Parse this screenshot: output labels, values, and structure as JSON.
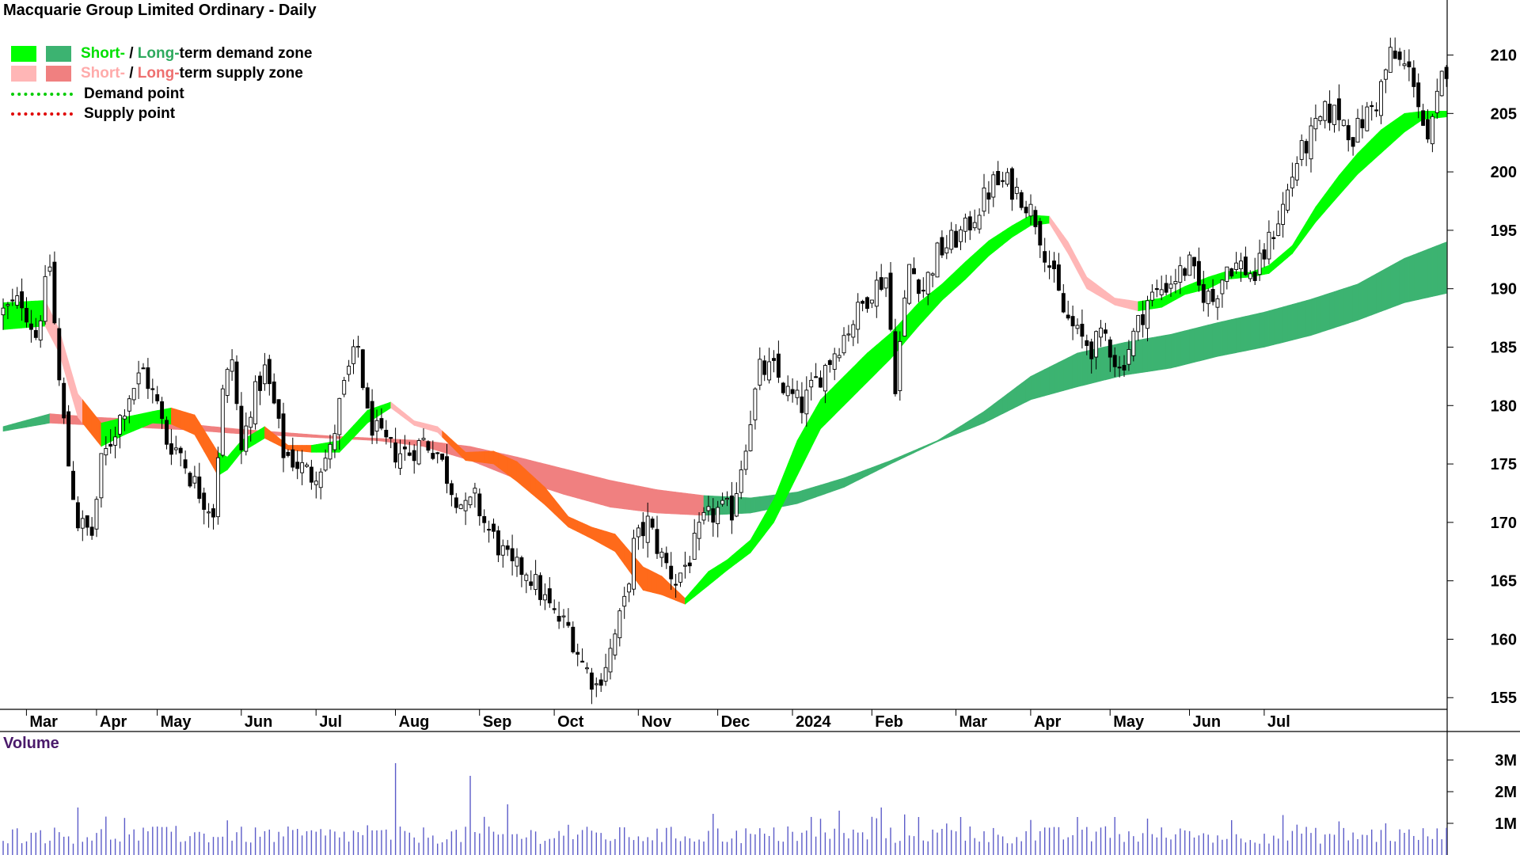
{
  "title": "Macquarie Group Limited Ordinary - Daily",
  "legend": {
    "demand": {
      "short": "Short-",
      "sep": " / ",
      "long": "Long-",
      "rest": "term demand zone"
    },
    "supply": {
      "short": "Short-",
      "sep": " / ",
      "long": "Long-",
      "rest": "term supply zone"
    },
    "demand_point": "Demand point",
    "supply_point": "Supply point"
  },
  "volume_label": "Volume",
  "colors": {
    "short_demand": "#00ff00",
    "long_demand": "#3cb371",
    "short_supply": "#ffb6b6",
    "long_supply": "#f08080",
    "supply_overlap": "#ff6a1a",
    "demand_point": "#00cc00",
    "supply_point": "#e00000",
    "volume_bar": "#5b5bc8",
    "candle": "#000000"
  },
  "chart_data": {
    "type": "candlestick",
    "title": "Macquarie Group Limited Ordinary - Daily",
    "x_months": [
      "Mar",
      "Apr",
      "May",
      "Jun",
      "Jul",
      "Aug",
      "Sep",
      "Oct",
      "Nov",
      "Dec",
      "2024",
      "Feb",
      "Mar",
      "Apr",
      "May",
      "Jun",
      "Jul"
    ],
    "price_axis": {
      "ticks": [
        155,
        160,
        165,
        170,
        175,
        180,
        185,
        190,
        195,
        200,
        205,
        210
      ],
      "range": [
        154,
        212
      ]
    },
    "volume_axis": {
      "ticks": [
        "1M",
        "2M",
        "3M"
      ],
      "values": [
        1000000,
        2000000,
        3000000
      ]
    },
    "close_path": [
      [
        0,
        188
      ],
      [
        4,
        189
      ],
      [
        7,
        186
      ],
      [
        10,
        192
      ],
      [
        12,
        182
      ],
      [
        14,
        175
      ],
      [
        16,
        170
      ],
      [
        19,
        169
      ],
      [
        21,
        175
      ],
      [
        24,
        178
      ],
      [
        27,
        181
      ],
      [
        30,
        183
      ],
      [
        33,
        180
      ],
      [
        35,
        177
      ],
      [
        38,
        176
      ],
      [
        40,
        174
      ],
      [
        43,
        172
      ],
      [
        45,
        171
      ],
      [
        47,
        181
      ],
      [
        49,
        184
      ],
      [
        51,
        176
      ],
      [
        53,
        180
      ],
      [
        56,
        183
      ],
      [
        58,
        180
      ],
      [
        60,
        176
      ],
      [
        63,
        175
      ],
      [
        66,
        174
      ],
      [
        70,
        176
      ],
      [
        72,
        180
      ],
      [
        74,
        183
      ],
      [
        76,
        185
      ],
      [
        78,
        179
      ],
      [
        81,
        177
      ],
      [
        84,
        176
      ],
      [
        87,
        176
      ],
      [
        90,
        177
      ],
      [
        93,
        176
      ],
      [
        96,
        173
      ],
      [
        99,
        171
      ],
      [
        101,
        172
      ],
      [
        103,
        170
      ],
      [
        106,
        168
      ],
      [
        109,
        166
      ],
      [
        112,
        166
      ],
      [
        115,
        164
      ],
      [
        118,
        162
      ],
      [
        121,
        161
      ],
      [
        124,
        158
      ],
      [
        127,
        156
      ],
      [
        130,
        159
      ],
      [
        133,
        163
      ],
      [
        135,
        168
      ],
      [
        138,
        170
      ],
      [
        141,
        167
      ],
      [
        144,
        165
      ],
      [
        147,
        167
      ],
      [
        150,
        170
      ],
      [
        153,
        171
      ],
      [
        156,
        171
      ],
      [
        159,
        177
      ],
      [
        162,
        183
      ],
      [
        165,
        183
      ],
      [
        168,
        181
      ],
      [
        171,
        180
      ],
      [
        174,
        182
      ],
      [
        177,
        184
      ],
      [
        180,
        186
      ],
      [
        183,
        188
      ],
      [
        186,
        190
      ],
      [
        189,
        191
      ],
      [
        191,
        182
      ],
      [
        194,
        192
      ],
      [
        197,
        190
      ],
      [
        200,
        193
      ],
      [
        203,
        194
      ],
      [
        206,
        195
      ],
      [
        209,
        197
      ],
      [
        212,
        199
      ],
      [
        215,
        199
      ],
      [
        218,
        198
      ],
      [
        221,
        196
      ],
      [
        224,
        192
      ],
      [
        227,
        188
      ],
      [
        230,
        186
      ],
      [
        233,
        185
      ],
      [
        236,
        186
      ],
      [
        239,
        183
      ],
      [
        242,
        186
      ],
      [
        245,
        189
      ],
      [
        248,
        190
      ],
      [
        251,
        191
      ],
      [
        254,
        192
      ],
      [
        256,
        190
      ],
      [
        259,
        189
      ],
      [
        262,
        192
      ],
      [
        265,
        192
      ],
      [
        268,
        191
      ],
      [
        271,
        194
      ],
      [
        274,
        197
      ],
      [
        277,
        201
      ],
      [
        280,
        203
      ],
      [
        283,
        205
      ],
      [
        286,
        205
      ],
      [
        289,
        203
      ],
      [
        292,
        205
      ],
      [
        294,
        206
      ],
      [
        297,
        210
      ],
      [
        300,
        209
      ],
      [
        302,
        208
      ],
      [
        305,
        202
      ],
      [
        308,
        208
      ],
      [
        309,
        209
      ]
    ],
    "short_term_zone_path": [
      [
        0,
        186.5,
        188.8
      ],
      [
        9,
        186.8,
        189.0
      ],
      [
        12,
        184.5,
        186.5
      ],
      [
        16,
        179.0,
        181.0
      ],
      [
        21,
        176.5,
        178.5
      ],
      [
        26,
        177.5,
        179.0
      ],
      [
        32,
        178.5,
        179.5
      ],
      [
        36,
        178.4,
        179.8
      ],
      [
        41,
        177.5,
        179.2
      ],
      [
        46,
        174.0,
        176.0
      ],
      [
        48,
        174.5,
        175.6
      ],
      [
        51,
        176.0,
        177.0
      ],
      [
        56,
        177.2,
        178.2
      ],
      [
        61,
        176.2,
        176.6
      ],
      [
        66,
        176.0,
        176.6
      ],
      [
        72,
        176.0,
        177.0
      ],
      [
        78,
        178.5,
        179.6
      ],
      [
        83,
        179.8,
        180.3
      ],
      [
        88,
        178.3,
        178.7
      ],
      [
        93,
        177.7,
        178.2
      ],
      [
        99,
        175.3,
        176.0
      ],
      [
        105,
        175.0,
        176.1
      ],
      [
        110,
        173.5,
        175.2
      ],
      [
        116,
        171.5,
        173.0
      ],
      [
        121,
        169.6,
        170.5
      ],
      [
        126,
        168.6,
        169.6
      ],
      [
        131,
        167.5,
        169.0
      ],
      [
        137,
        164.2,
        166.2
      ],
      [
        141,
        163.8,
        165.4
      ],
      [
        146,
        163.0,
        163.5
      ],
      [
        151,
        164.6,
        165.8
      ],
      [
        155,
        165.9,
        166.8
      ],
      [
        160,
        167.4,
        168.5
      ],
      [
        165,
        170.0,
        172.0
      ],
      [
        170,
        174.0,
        177.0
      ],
      [
        175,
        178.0,
        180.5
      ],
      [
        180,
        180.0,
        182.5
      ],
      [
        185,
        182.0,
        184.5
      ],
      [
        190,
        184.0,
        186.2
      ],
      [
        196,
        186.8,
        188.8
      ],
      [
        201,
        189.0,
        190.4
      ],
      [
        206,
        190.8,
        192.3
      ],
      [
        211,
        192.8,
        194.1
      ],
      [
        216,
        194.4,
        195.4
      ],
      [
        220,
        195.4,
        196.3
      ],
      [
        224,
        195.6,
        196.2
      ],
      [
        228,
        193.0,
        194.0
      ],
      [
        232,
        190.0,
        191.0
      ],
      [
        238,
        188.6,
        189.2
      ],
      [
        243,
        188.1,
        188.9
      ],
      [
        248,
        188.4,
        189.2
      ],
      [
        253,
        189.5,
        190.2
      ],
      [
        258,
        190.0,
        191.0
      ],
      [
        262,
        190.8,
        191.5
      ],
      [
        267,
        191.0,
        191.4
      ],
      [
        271,
        191.3,
        192.0
      ],
      [
        276,
        193.0,
        193.7
      ],
      [
        281,
        195.7,
        197.0
      ],
      [
        286,
        198.0,
        199.7
      ],
      [
        290,
        199.8,
        201.6
      ],
      [
        295,
        201.6,
        203.6
      ],
      [
        300,
        203.4,
        205.0
      ],
      [
        304,
        204.5,
        205.2
      ],
      [
        309,
        204.7,
        205.2
      ]
    ],
    "long_term_zone_path": [
      [
        0,
        178.2,
        177.8
      ],
      [
        10,
        179.3,
        178.5
      ],
      [
        20,
        179.0,
        178.3
      ],
      [
        30,
        178.8,
        178.1
      ],
      [
        40,
        178.4,
        177.9
      ],
      [
        50,
        178.0,
        177.6
      ],
      [
        60,
        177.7,
        177.4
      ],
      [
        70,
        177.4,
        177.2
      ],
      [
        80,
        177.2,
        177.0
      ],
      [
        90,
        177.0,
        176.5
      ],
      [
        100,
        176.5,
        175.3
      ],
      [
        110,
        175.6,
        173.7
      ],
      [
        120,
        174.6,
        172.4
      ],
      [
        130,
        173.6,
        171.3
      ],
      [
        140,
        172.8,
        170.8
      ],
      [
        150,
        172.3,
        170.6
      ],
      [
        160,
        172.1,
        170.8
      ],
      [
        170,
        172.6,
        171.6
      ],
      [
        180,
        173.8,
        173.0
      ],
      [
        190,
        175.3,
        175.0
      ],
      [
        200,
        177.0,
        176.9
      ],
      [
        210,
        179.5,
        178.5
      ],
      [
        220,
        182.5,
        180.5
      ],
      [
        230,
        184.5,
        181.6
      ],
      [
        240,
        185.4,
        182.6
      ],
      [
        250,
        186.1,
        183.2
      ],
      [
        260,
        187.1,
        184.2
      ],
      [
        270,
        188.0,
        185.0
      ],
      [
        280,
        189.1,
        186.0
      ],
      [
        290,
        190.4,
        187.3
      ],
      [
        300,
        192.6,
        188.8
      ],
      [
        309,
        194.0,
        189.6
      ]
    ],
    "volume_note": "Daily volume bars, roughly 0.3M to 2.2M per day with a peak near 3.1M in late June"
  }
}
